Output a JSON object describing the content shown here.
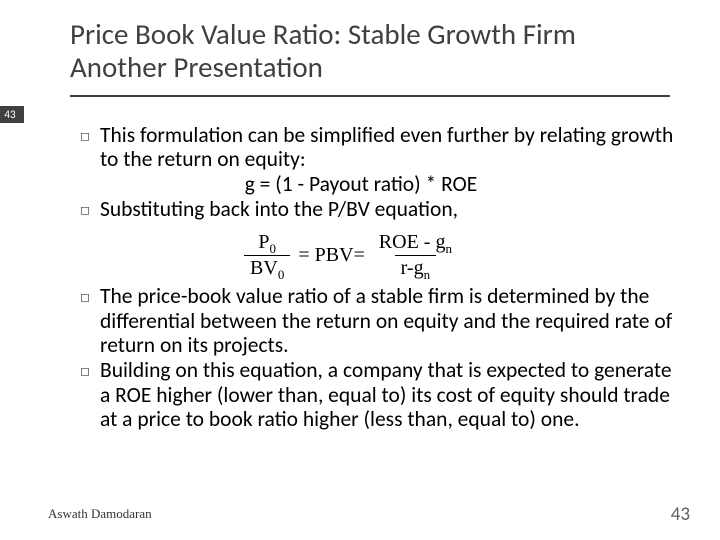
{
  "title": "Price Book Value Ratio: Stable Growth Firm Another Presentation",
  "slide_badge": "43",
  "bullets": {
    "b1": "This formulation can be simplified even further by relating growth to the return on equity:",
    "formula1": "g = (1 - Payout ratio) * ROE",
    "b2": "Substituting back into the P/BV equation,",
    "b3": "The price-book value ratio of a stable firm is determined by the differential between the return on equity and the required rate of return on its projects.",
    "b4": "Building on this equation, a company that is expected to generate a ROE higher (lower than, equal to) its cost of equity should trade at a price to book ratio higher (less than, equal to) one."
  },
  "equation": {
    "lhs_num": "P",
    "lhs_num_sub": "0",
    "lhs_den": "BV",
    "lhs_den_sub": "0",
    "mid": "= PBV=",
    "rhs_num_left": "ROE - g",
    "rhs_num_sub": "n",
    "rhs_den_left": "r-g",
    "rhs_den_sub": "n"
  },
  "footer": {
    "author": "Aswath Damodaran",
    "page": "43"
  }
}
